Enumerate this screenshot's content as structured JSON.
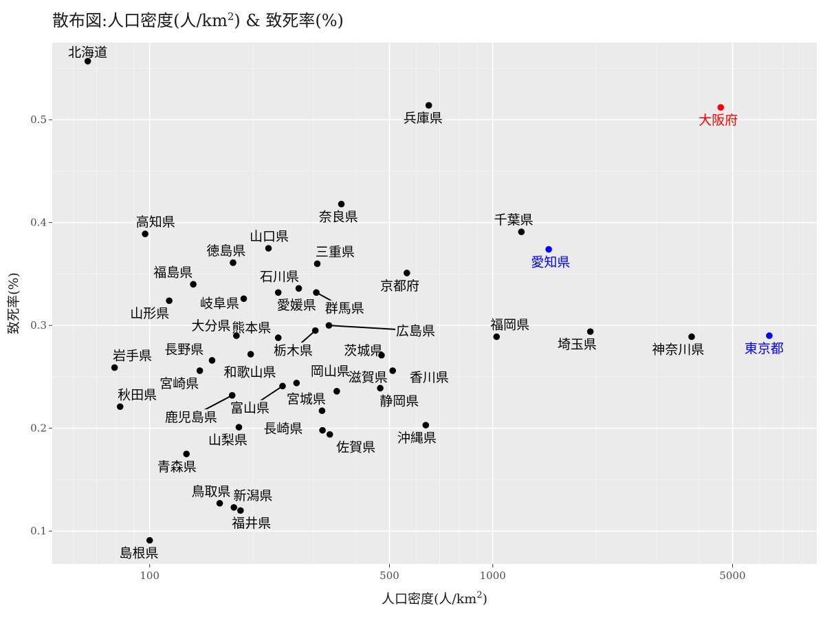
{
  "chart_data": {
    "type": "scatter",
    "title": "散布図:人口密度(人/km²) & 致死率(%)",
    "title_parts": {
      "prefix": "散布図:人口密度(人/km",
      "sup": "2",
      "suffix": ") & 致死率(%)"
    },
    "xlabel": "人口密度(人/km²)",
    "xlabel_parts": {
      "prefix": "人口密度(人/km",
      "sup": "2",
      "suffix": ")"
    },
    "ylabel": "致死率(%)",
    "x_scale": "log10",
    "xlim": [
      52,
      8800
    ],
    "ylim": [
      0.068,
      0.575
    ],
    "x_ticks": [
      100,
      500,
      1000,
      5000
    ],
    "x_tick_labels": [
      "100",
      "500",
      "1000",
      "5000"
    ],
    "y_ticks": [
      0.1,
      0.2,
      0.3,
      0.4,
      0.5
    ],
    "y_tick_labels": [
      "0.1",
      "0.2",
      "0.3",
      "0.4",
      "0.5"
    ],
    "grid": true,
    "colors": {
      "panel": "#ebebeb",
      "grid_major": "#ffffff",
      "default": "#000000",
      "red": "#ff0000",
      "blue": "#0000ff"
    },
    "points": [
      {
        "name": "北海道",
        "x": 66,
        "y": 0.557,
        "color": "#000000",
        "lx": 66,
        "ly": 0.566
      },
      {
        "name": "兵庫県",
        "x": 651,
        "y": 0.514,
        "color": "#000000",
        "lx": 626,
        "ly": 0.502
      },
      {
        "name": "大阪府",
        "x": 4620,
        "y": 0.512,
        "color": "#ff0000",
        "lx": 4545,
        "ly": 0.5
      },
      {
        "name": "奈良県",
        "x": 362,
        "y": 0.418,
        "color": "#000000",
        "lx": 355,
        "ly": 0.406
      },
      {
        "name": "千葉県",
        "x": 1212,
        "y": 0.391,
        "color": "#000000",
        "lx": 1151,
        "ly": 0.403
      },
      {
        "name": "高知県",
        "x": 97,
        "y": 0.389,
        "color": "#000000",
        "lx": 104,
        "ly": 0.401
      },
      {
        "name": "山口県",
        "x": 222,
        "y": 0.375,
        "color": "#000000",
        "lx": 223,
        "ly": 0.387
      },
      {
        "name": "愛知県",
        "x": 1456,
        "y": 0.374,
        "color": "#0000ff",
        "lx": 1475,
        "ly": 0.362
      },
      {
        "name": "徳島県",
        "x": 175,
        "y": 0.361,
        "color": "#000000",
        "lx": 167,
        "ly": 0.373
      },
      {
        "name": "三重県",
        "x": 308,
        "y": 0.36,
        "color": "#000000",
        "lx": 347,
        "ly": 0.372
      },
      {
        "name": "京都府",
        "x": 562,
        "y": 0.351,
        "color": "#000000",
        "lx": 536,
        "ly": 0.339
      },
      {
        "name": "福島県",
        "x": 134,
        "y": 0.34,
        "color": "#000000",
        "lx": 117,
        "ly": 0.352
      },
      {
        "name": "石川県",
        "x": 272,
        "y": 0.336,
        "color": "#000000",
        "lx": 239,
        "ly": 0.348
      },
      {
        "name": "群馬県",
        "x": 306,
        "y": 0.332,
        "color": "#000000",
        "lx": 370,
        "ly": 0.317,
        "leader": true
      },
      {
        "name": "岐阜県",
        "x": 188,
        "y": 0.326,
        "color": "#000000",
        "lx": 160,
        "ly": 0.322
      },
      {
        "name": "山形県",
        "x": 114,
        "y": 0.324,
        "color": "#000000",
        "lx": 100,
        "ly": 0.312
      },
      {
        "name": "愛媛県",
        "x": 237,
        "y": 0.332,
        "color": "#000000",
        "lx": 268,
        "ly": 0.32
      },
      {
        "name": "大分県",
        "x": 179,
        "y": 0.29,
        "color": "#000000",
        "lx": 151,
        "ly": 0.3
      },
      {
        "name": "熊本県",
        "x": 237,
        "y": 0.288,
        "color": "#000000",
        "lx": 198,
        "ly": 0.298
      },
      {
        "name": "広島県",
        "x": 333,
        "y": 0.3,
        "color": "#000000",
        "lx": 596,
        "ly": 0.295,
        "leader": true
      },
      {
        "name": "栃木県",
        "x": 304,
        "y": 0.295,
        "color": "#000000",
        "lx": 262,
        "ly": 0.276,
        "leader": true
      },
      {
        "name": "福岡県",
        "x": 1026,
        "y": 0.289,
        "color": "#000000",
        "lx": 1122,
        "ly": 0.301
      },
      {
        "name": "埼玉県",
        "x": 1925,
        "y": 0.294,
        "color": "#000000",
        "lx": 1761,
        "ly": 0.282
      },
      {
        "name": "神奈川県",
        "x": 3800,
        "y": 0.289,
        "color": "#000000",
        "lx": 3470,
        "ly": 0.277
      },
      {
        "name": "東京都",
        "x": 6400,
        "y": 0.29,
        "color": "#0000ff",
        "lx": 6180,
        "ly": 0.278
      },
      {
        "name": "岩手県",
        "x": 79,
        "y": 0.259,
        "color": "#000000",
        "lx": 89,
        "ly": 0.271
      },
      {
        "name": "長野県",
        "x": 152,
        "y": 0.266,
        "color": "#000000",
        "lx": 126,
        "ly": 0.277
      },
      {
        "name": "和歌山県",
        "x": 197,
        "y": 0.272,
        "color": "#000000",
        "lx": 196,
        "ly": 0.255
      },
      {
        "name": "茨城県",
        "x": 474,
        "y": 0.271,
        "color": "#000000",
        "lx": 420,
        "ly": 0.276
      },
      {
        "name": "香川県",
        "x": 511,
        "y": 0.256,
        "color": "#000000",
        "lx": 653,
        "ly": 0.25
      },
      {
        "name": "宮崎県",
        "x": 140,
        "y": 0.256,
        "color": "#000000",
        "lx": 122,
        "ly": 0.244
      },
      {
        "name": "岡山県",
        "x": 268,
        "y": 0.244,
        "color": "#000000",
        "lx": 336,
        "ly": 0.256
      },
      {
        "name": "滋賀県",
        "x": 351,
        "y": 0.236,
        "color": "#000000",
        "lx": 433,
        "ly": 0.25
      },
      {
        "name": "静岡県",
        "x": 470,
        "y": 0.239,
        "color": "#000000",
        "lx": 534,
        "ly": 0.227
      },
      {
        "name": "秋田県",
        "x": 82,
        "y": 0.221,
        "color": "#000000",
        "lx": 92,
        "ly": 0.233
      },
      {
        "name": "宮城県",
        "x": 318,
        "y": 0.217,
        "color": "#000000",
        "lx": 286,
        "ly": 0.229
      },
      {
        "name": "鹿児島県",
        "x": 174,
        "y": 0.232,
        "color": "#000000",
        "lx": 132,
        "ly": 0.211,
        "leader": true
      },
      {
        "name": "富山県",
        "x": 244,
        "y": 0.241,
        "color": "#000000",
        "lx": 196,
        "ly": 0.22,
        "leader": true
      },
      {
        "name": "沖縄県",
        "x": 638,
        "y": 0.203,
        "color": "#000000",
        "lx": 601,
        "ly": 0.191
      },
      {
        "name": "山梨県",
        "x": 182,
        "y": 0.201,
        "color": "#000000",
        "lx": 169,
        "ly": 0.189
      },
      {
        "name": "長崎県",
        "x": 319,
        "y": 0.198,
        "color": "#000000",
        "lx": 245,
        "ly": 0.2
      },
      {
        "name": "佐賀県",
        "x": 335,
        "y": 0.194,
        "color": "#000000",
        "lx": 399,
        "ly": 0.182
      },
      {
        "name": "青森県",
        "x": 128,
        "y": 0.175,
        "color": "#000000",
        "lx": 120,
        "ly": 0.163
      },
      {
        "name": "鳥取県",
        "x": 160,
        "y": 0.127,
        "color": "#000000",
        "lx": 151,
        "ly": 0.139
      },
      {
        "name": "新潟県",
        "x": 176,
        "y": 0.123,
        "color": "#000000",
        "lx": 200,
        "ly": 0.135
      },
      {
        "name": "福井県",
        "x": 184,
        "y": 0.12,
        "color": "#000000",
        "lx": 198,
        "ly": 0.108
      },
      {
        "name": "島根県",
        "x": 100,
        "y": 0.091,
        "color": "#000000",
        "lx": 93,
        "ly": 0.079
      }
    ]
  }
}
